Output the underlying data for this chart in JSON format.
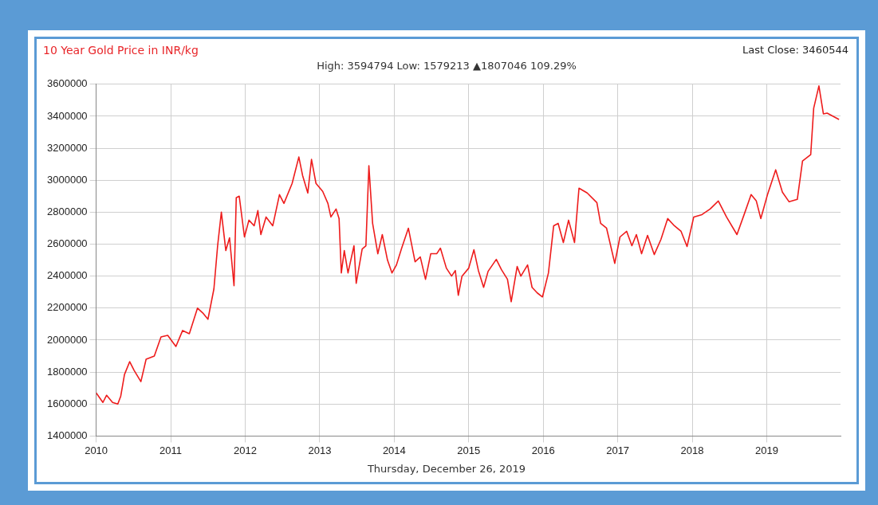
{
  "chart_data": {
    "type": "line",
    "title": "10 Year Gold Price in INR/kg",
    "subtitle": "High: 3594794 Low: 1579213 ▲1807046 109.29%",
    "annotations": [
      "Last Close: 3460544",
      "Thursday, December 26, 2019"
    ],
    "xlim": [
      2010,
      2019.99
    ],
    "xticks": [
      2010,
      2011,
      2012,
      2013,
      2014,
      2015,
      2016,
      2017,
      2018,
      2019
    ],
    "ylim": [
      1400000,
      3600000
    ],
    "yticks": [
      1400000,
      1600000,
      1800000,
      2000000,
      2200000,
      2400000,
      2600000,
      2800000,
      3000000,
      3200000,
      3400000,
      3600000
    ],
    "grid": true,
    "legend": false,
    "marker": "none",
    "line_style": "solid",
    "series": [
      {
        "color": "#ee1c1c",
        "x": [
          2010.0,
          2010.09,
          2010.14,
          2010.22,
          2010.29,
          2010.33,
          2010.38,
          2010.45,
          2010.51,
          2010.6,
          2010.67,
          2010.78,
          2010.87,
          2010.96,
          2011.07,
          2011.16,
          2011.25,
          2011.36,
          2011.43,
          2011.5,
          2011.58,
          2011.63,
          2011.68,
          2011.74,
          2011.79,
          2011.85,
          2011.88,
          2011.92,
          2011.99,
          2012.05,
          2012.12,
          2012.17,
          2012.21,
          2012.28,
          2012.37,
          2012.46,
          2012.52,
          2012.63,
          2012.72,
          2012.77,
          2012.84,
          2012.89,
          2012.95,
          2013.04,
          2013.11,
          2013.15,
          2013.22,
          2013.26,
          2013.29,
          2013.33,
          2013.38,
          2013.46,
          2013.49,
          2013.57,
          2013.62,
          2013.66,
          2013.71,
          2013.78,
          2013.84,
          2013.91,
          2013.97,
          2014.03,
          2014.1,
          2014.19,
          2014.28,
          2014.35,
          2014.42,
          2014.49,
          2014.57,
          2014.62,
          2014.7,
          2014.77,
          2014.82,
          2014.86,
          2014.91,
          2015.0,
          2015.07,
          2015.13,
          2015.2,
          2015.26,
          2015.37,
          2015.44,
          2015.52,
          2015.57,
          2015.65,
          2015.7,
          2015.79,
          2015.85,
          2015.92,
          2015.99,
          2016.07,
          2016.14,
          2016.2,
          2016.27,
          2016.34,
          2016.42,
          2016.48,
          2016.59,
          2016.72,
          2016.77,
          2016.85,
          2016.96,
          2017.03,
          2017.12,
          2017.19,
          2017.25,
          2017.32,
          2017.4,
          2017.49,
          2017.58,
          2017.67,
          2017.76,
          2017.85,
          2017.93,
          2018.02,
          2018.13,
          2018.24,
          2018.35,
          2018.46,
          2018.6,
          2018.7,
          2018.79,
          2018.86,
          2018.92,
          2019.01,
          2019.12,
          2019.21,
          2019.3,
          2019.41,
          2019.48,
          2019.59,
          2019.63,
          2019.7,
          2019.76,
          2019.81,
          2019.89,
          2019.97
        ],
        "values": [
          1670000,
          1610000,
          1655000,
          1610000,
          1600000,
          1650000,
          1785000,
          1865000,
          1810000,
          1740000,
          1880000,
          1900000,
          2020000,
          2030000,
          1960000,
          2060000,
          2040000,
          2200000,
          2170000,
          2130000,
          2320000,
          2590000,
          2800000,
          2560000,
          2640000,
          2340000,
          2890000,
          2900000,
          2645000,
          2750000,
          2715000,
          2810000,
          2660000,
          2770000,
          2715000,
          2910000,
          2855000,
          2980000,
          3145000,
          3030000,
          2920000,
          3130000,
          2980000,
          2930000,
          2855000,
          2770000,
          2820000,
          2760000,
          2420000,
          2560000,
          2420000,
          2590000,
          2355000,
          2570000,
          2590000,
          3090000,
          2730000,
          2540000,
          2660000,
          2500000,
          2420000,
          2470000,
          2575000,
          2700000,
          2490000,
          2520000,
          2380000,
          2540000,
          2540000,
          2575000,
          2450000,
          2400000,
          2435000,
          2280000,
          2400000,
          2450000,
          2565000,
          2435000,
          2330000,
          2430000,
          2505000,
          2440000,
          2380000,
          2240000,
          2460000,
          2400000,
          2470000,
          2330000,
          2295000,
          2270000,
          2420000,
          2715000,
          2730000,
          2610000,
          2750000,
          2610000,
          2950000,
          2920000,
          2860000,
          2730000,
          2700000,
          2480000,
          2645000,
          2680000,
          2590000,
          2660000,
          2540000,
          2655000,
          2535000,
          2630000,
          2760000,
          2715000,
          2680000,
          2585000,
          2770000,
          2785000,
          2820000,
          2870000,
          2770000,
          2660000,
          2790000,
          2910000,
          2870000,
          2760000,
          2910000,
          3065000,
          2925000,
          2865000,
          2880000,
          3120000,
          3160000,
          3450000,
          3590000,
          3415000,
          3420000,
          3400000,
          3380000
        ]
      }
    ]
  }
}
